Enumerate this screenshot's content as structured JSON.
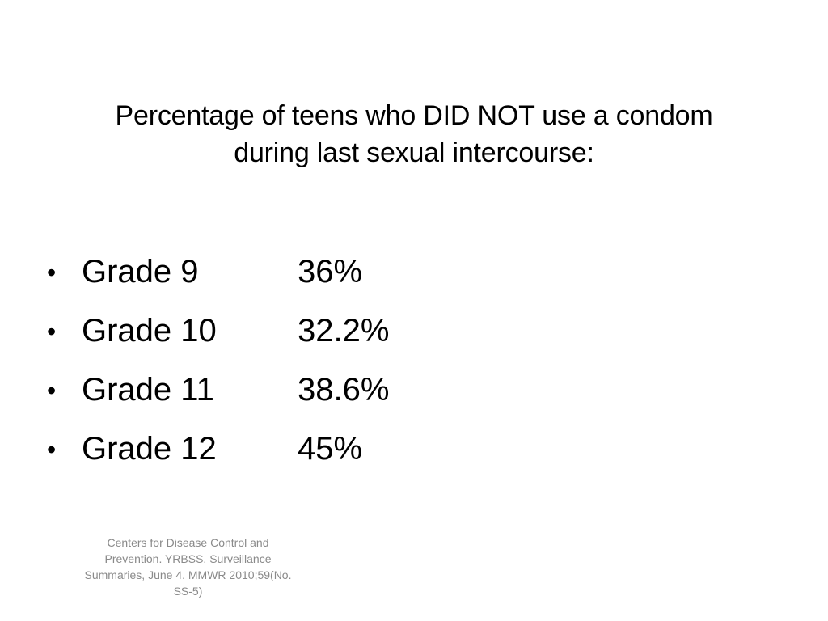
{
  "title": {
    "line1": "Percentage of teens who DID NOT use a condom",
    "line2": "during last sexual intercourse:"
  },
  "bullet_symbol": "•",
  "items": [
    {
      "label": "Grade 9",
      "value": "36%"
    },
    {
      "label": "Grade 10",
      "value": "32.2%"
    },
    {
      "label": "Grade 11",
      "value": "38.6%"
    },
    {
      "label": "Grade 12",
      "value": "45%"
    }
  ],
  "citation": {
    "line1": "Centers for Disease Control and",
    "line2": "Prevention. YRBSS. Surveillance",
    "line3": "Summaries, June 4. MMWR 2010;59(No.",
    "line4": "SS-5)"
  }
}
